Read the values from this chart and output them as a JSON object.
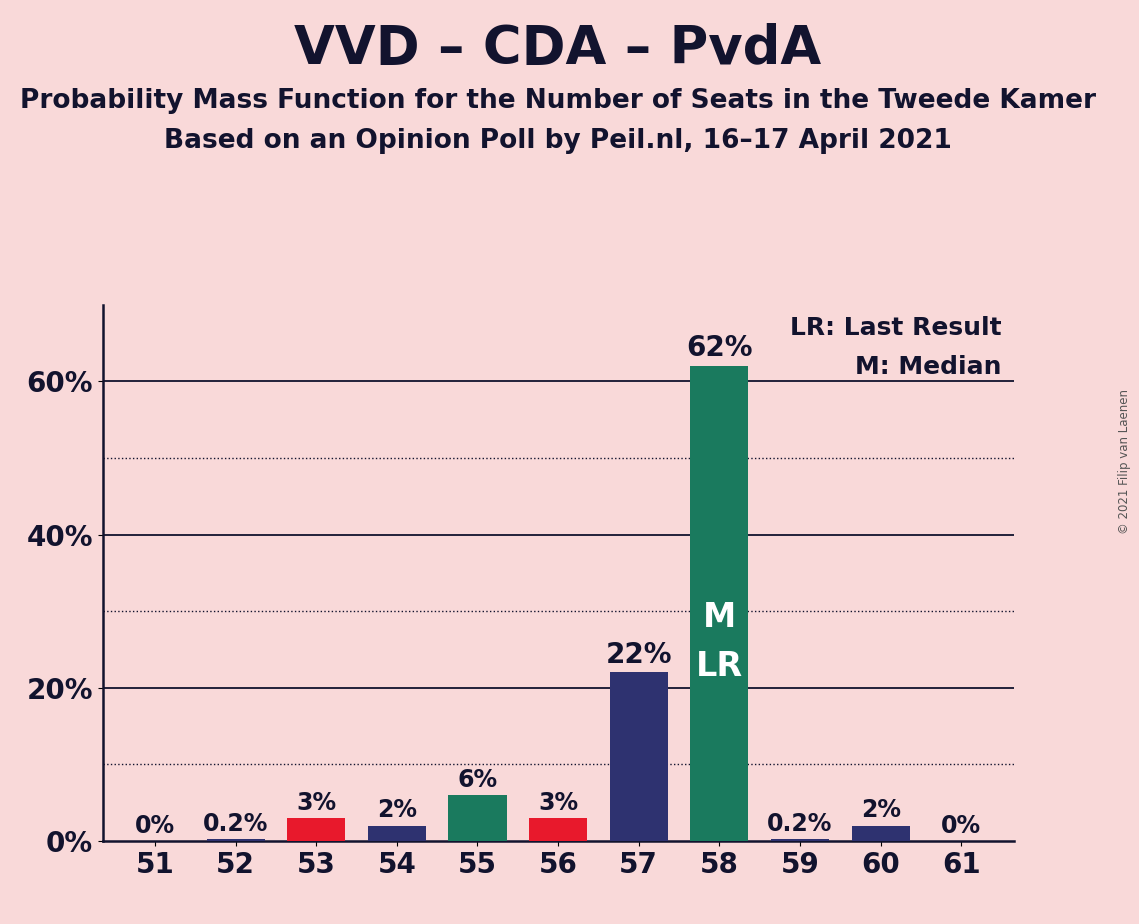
{
  "title": "VVD – CDA – PvdA",
  "subtitle1": "Probability Mass Function for the Number of Seats in the Tweede Kamer",
  "subtitle2": "Based on an Opinion Poll by Peil.nl, 16–17 April 2021",
  "copyright": "© 2021 Filip van Laenen",
  "background_color": "#f9d9d9",
  "seats": [
    51,
    52,
    53,
    54,
    55,
    56,
    57,
    58,
    59,
    60,
    61
  ],
  "values": [
    0.0,
    0.2,
    3.0,
    2.0,
    6.0,
    3.0,
    22.0,
    62.0,
    0.2,
    2.0,
    0.0
  ],
  "labels": [
    "0%",
    "0.2%",
    "3%",
    "2%",
    "6%",
    "3%",
    "22%",
    "62%",
    "0.2%",
    "2%",
    "0%"
  ],
  "colors": [
    "#2e3270",
    "#2e3270",
    "#e8192c",
    "#2e3270",
    "#1a7a5e",
    "#e8192c",
    "#2e3270",
    "#1a7a5e",
    "#2e3270",
    "#2e3270",
    "#2e3270"
  ],
  "median_seat": 58,
  "last_result_seat": 58,
  "median_label": "M",
  "last_result_label": "LR",
  "legend_lr": "LR: Last Result",
  "legend_m": "M: Median",
  "bar_text_color_inside": "#ffffff",
  "bar_text_color_outside": "#12132e",
  "ylim": [
    0,
    70
  ],
  "solid_gridlines": [
    20,
    40,
    60
  ],
  "dotted_gridlines": [
    10,
    30,
    50
  ],
  "ytick_positions": [
    0,
    20,
    40,
    60
  ],
  "ytick_labels": [
    "0%",
    "20%",
    "40%",
    "60%"
  ],
  "grid_color": "#12132e",
  "axis_color": "#12132e",
  "title_fontsize": 38,
  "subtitle_fontsize": 19,
  "label_fontsize_small": 17,
  "label_fontsize_large": 19,
  "tick_fontsize": 20,
  "legend_fontsize": 18,
  "inside_label_fontsize": 24,
  "bar_width": 0.72
}
